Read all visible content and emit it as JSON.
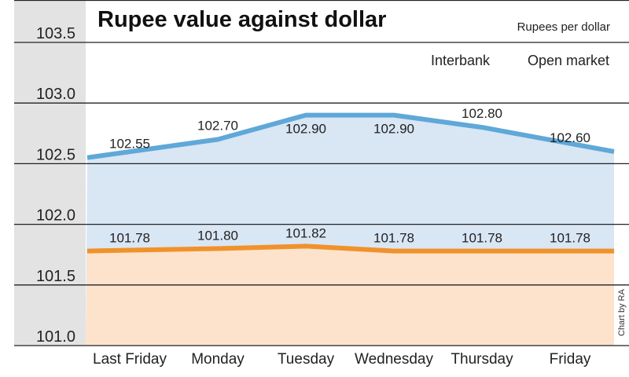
{
  "chart_data": {
    "type": "area",
    "title": "Rupee value against dollar",
    "subtitle": "Rupees per dollar",
    "credit": "Chart by RA",
    "categories": [
      "Last Friday",
      "Monday",
      "Tuesday",
      "Wednesday",
      "Thursday",
      "Friday"
    ],
    "y_ticks": [
      "103.5",
      "103.0",
      "102.5",
      "102.0",
      "101.5",
      "101.0"
    ],
    "ylim": [
      101.0,
      103.5
    ],
    "grid": true,
    "legend_placement": "top-right",
    "series": [
      {
        "name": "Interbank",
        "values": [
          101.78,
          101.8,
          101.82,
          101.78,
          101.78,
          101.78
        ],
        "labels": [
          "101.78",
          "101.80",
          "101.82",
          "101.78",
          "101.78",
          "101.78"
        ],
        "line_color": "#f0922b",
        "fill_color": "#fde3cc"
      },
      {
        "name": "Open market",
        "values": [
          102.55,
          102.7,
          102.9,
          102.9,
          102.8,
          102.6
        ],
        "labels": [
          "102.55",
          "102.70",
          "102.90",
          "102.90",
          "102.80",
          "102.60"
        ],
        "line_color": "#5fa8d8",
        "fill_color": "#d9e6f4"
      }
    ]
  }
}
